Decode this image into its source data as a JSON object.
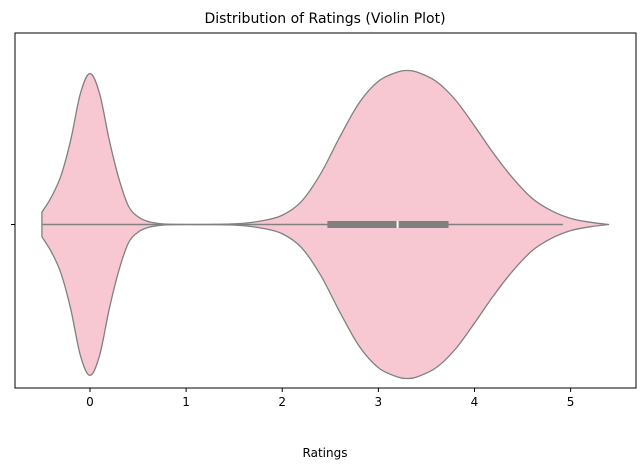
{
  "chart_data": {
    "type": "violin",
    "title": "Distribution of Ratings (Violin Plot)",
    "xlabel": "Ratings",
    "ylabel": "",
    "xlim": [
      -0.78,
      5.68
    ],
    "xticks": [
      0,
      1,
      2,
      3,
      4,
      5
    ],
    "orientation": "horizontal",
    "grid": false,
    "colors": {
      "fill": "#f8c8d2",
      "edge": "#808080",
      "box": "#808080",
      "median": "#ffffff"
    },
    "density": {
      "x": [
        -0.5,
        -0.4,
        -0.3,
        -0.2,
        -0.1,
        0.0,
        0.1,
        0.2,
        0.3,
        0.4,
        0.5,
        0.6,
        0.7,
        0.8,
        1.0,
        1.2,
        1.4,
        1.6,
        1.8,
        2.0,
        2.2,
        2.4,
        2.6,
        2.8,
        3.0,
        3.2,
        3.3,
        3.4,
        3.6,
        3.8,
        4.0,
        4.2,
        4.4,
        4.6,
        4.8,
        5.0,
        5.2,
        5.4
      ],
      "half_width": [
        0.08,
        0.18,
        0.32,
        0.55,
        0.85,
        0.98,
        0.85,
        0.55,
        0.3,
        0.12,
        0.05,
        0.02,
        0.008,
        0.002,
        0.0,
        0.0,
        0.002,
        0.008,
        0.025,
        0.06,
        0.15,
        0.33,
        0.57,
        0.79,
        0.93,
        0.99,
        1.0,
        0.99,
        0.93,
        0.81,
        0.64,
        0.46,
        0.3,
        0.17,
        0.09,
        0.04,
        0.015,
        0.0
      ]
    },
    "box": {
      "q1": 2.47,
      "median": 3.2,
      "q3": 3.73,
      "whisker_low": -0.5,
      "whisker_high": 4.92
    }
  }
}
